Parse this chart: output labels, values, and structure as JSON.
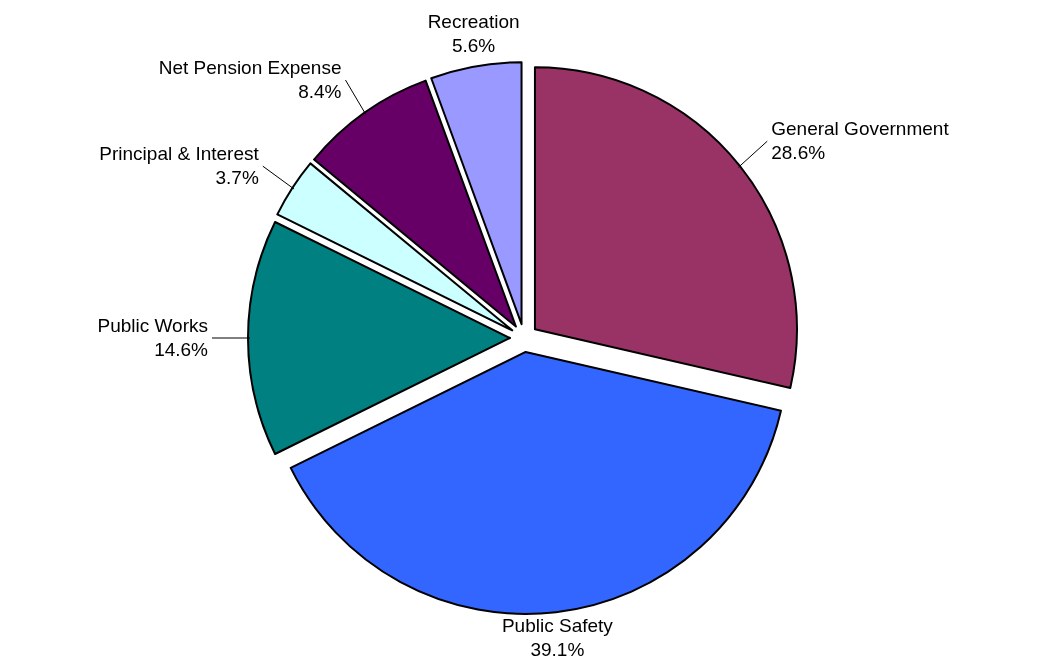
{
  "chart_data": {
    "type": "pie",
    "categories": [
      "General Government",
      "Public Safety",
      "Public Works",
      "Principal & Interest",
      "Net Pension Expense",
      "Recreation"
    ],
    "values": [
      28.6,
      39.1,
      14.6,
      3.7,
      8.4,
      5.6
    ],
    "value_labels": [
      "28.6%",
      "39.1%",
      "14.6%",
      "3.7%",
      "8.4%",
      "5.6%"
    ],
    "colors": [
      "#993366",
      "#3366ff",
      "#008080",
      "#ccffff",
      "#660066",
      "#9999ff"
    ]
  }
}
